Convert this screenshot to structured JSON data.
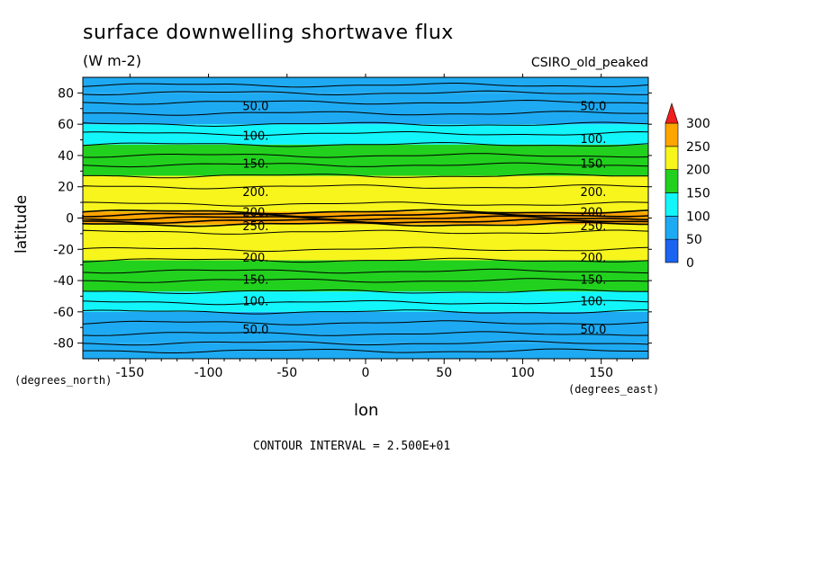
{
  "chart_data": {
    "type": "heatmap",
    "title": "surface downwelling shortwave flux",
    "units": "(W m-2)",
    "model": "CSIRO_old_peaked",
    "xlabel": "lon",
    "ylabel": "latitude",
    "x_units_note": "(degrees_east)",
    "y_units_note": "(degrees_north)",
    "xlim": [
      -180,
      180
    ],
    "ylim": [
      -90,
      90
    ],
    "x_ticks": [
      -150,
      -100,
      -50,
      0,
      50,
      100,
      150
    ],
    "x_tick_labels": [
      "-150",
      "-100",
      "-50",
      "0",
      "50",
      "100",
      "150"
    ],
    "y_ticks": [
      -80,
      -60,
      -40,
      -20,
      0,
      20,
      40,
      60,
      80
    ],
    "y_tick_labels": [
      "-80",
      "-60",
      "-40",
      "-20",
      "0",
      "20",
      "40",
      "60",
      "80"
    ],
    "contour_interval_text": "CONTOUR INTERVAL = 2.500E+01",
    "colorbar": {
      "levels": [
        0,
        50,
        100,
        150,
        200,
        250,
        300
      ],
      "labels": [
        "0",
        "50",
        "100",
        "150",
        "200",
        "250",
        "300"
      ],
      "colors": [
        "#1a64f0",
        "#1eaaf2",
        "#12f5fa",
        "#22d11e",
        "#f7f51c",
        "#ffa500"
      ],
      "overflow_color": "#f01e1e"
    },
    "bands": [
      {
        "lat_min": -90,
        "lat_max": -80,
        "value": 50
      },
      {
        "lat_min": -80,
        "lat_max": -60,
        "value": 75
      },
      {
        "lat_min": -60,
        "lat_max": -47,
        "value": 125
      },
      {
        "lat_min": -47,
        "lat_max": -27,
        "value": 175
      },
      {
        "lat_min": -27,
        "lat_max": -4,
        "value": 225
      },
      {
        "lat_min": -4,
        "lat_max": 4,
        "value": 255
      },
      {
        "lat_min": 4,
        "lat_max": 27,
        "value": 225
      },
      {
        "lat_min": 27,
        "lat_max": 47,
        "value": 175
      },
      {
        "lat_min": 47,
        "lat_max": 60,
        "value": 125
      },
      {
        "lat_min": 60,
        "lat_max": 80,
        "value": 75
      },
      {
        "lat_min": 80,
        "lat_max": 90,
        "value": 50
      }
    ],
    "contour_lines_lat": [
      -85,
      -80,
      -74,
      -67,
      -60,
      -54,
      -47,
      -40,
      -34,
      -27,
      -20,
      -9,
      -4,
      -2,
      0,
      2,
      4,
      9,
      20,
      27,
      34,
      40,
      47,
      54,
      60,
      67,
      74,
      80,
      85
    ],
    "contour_labels": [
      {
        "text": "50.0",
        "lon": -70,
        "lat": 72
      },
      {
        "text": "50.0",
        "lon": 145,
        "lat": 72
      },
      {
        "text": "100.",
        "lon": -70,
        "lat": 53
      },
      {
        "text": "100.",
        "lon": 145,
        "lat": 51
      },
      {
        "text": "150.",
        "lon": -70,
        "lat": 35
      },
      {
        "text": "150.",
        "lon": 145,
        "lat": 35
      },
      {
        "text": "200.",
        "lon": -70,
        "lat": 17
      },
      {
        "text": "200.",
        "lon": 145,
        "lat": 17
      },
      {
        "text": "200.",
        "lon": -70,
        "lat": 4
      },
      {
        "text": "200.",
        "lon": 145,
        "lat": 4
      },
      {
        "text": "250.",
        "lon": -70,
        "lat": -5
      },
      {
        "text": "250.",
        "lon": 145,
        "lat": -5
      },
      {
        "text": "200.",
        "lon": -70,
        "lat": -25
      },
      {
        "text": "200.",
        "lon": 145,
        "lat": -25
      },
      {
        "text": "150.",
        "lon": -70,
        "lat": -39
      },
      {
        "text": "150.",
        "lon": 145,
        "lat": -39
      },
      {
        "text": "100.",
        "lon": -70,
        "lat": -53
      },
      {
        "text": "100.",
        "lon": 145,
        "lat": -53
      },
      {
        "text": "50.0",
        "lon": -70,
        "lat": -71
      },
      {
        "text": "50.0",
        "lon": 145,
        "lat": -71
      }
    ]
  }
}
